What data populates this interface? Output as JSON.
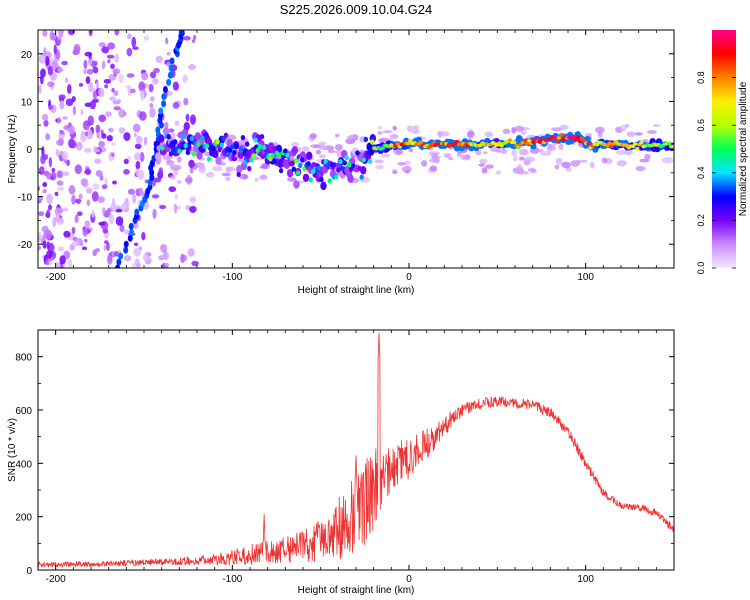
{
  "title": "S225.2026.009.10.04.G24",
  "chart_data": [
    {
      "type": "heatmap",
      "name": "spectrogram",
      "xlabel": "Height of straight line (km)",
      "ylabel": "Frequency (Hz)",
      "xlim": [
        -210,
        150
      ],
      "ylim": [
        -25,
        25
      ],
      "xticks": [
        -200,
        -100,
        0,
        100
      ],
      "xtick_labels": [
        "-200",
        "-100",
        "0",
        "100"
      ],
      "yticks": [
        20,
        10,
        0,
        -10,
        -20
      ],
      "ytick_labels": [
        "20",
        "10",
        "0",
        "-10",
        "-20"
      ],
      "colorbar": {
        "label": "Normalized spectral amplitude",
        "range": [
          0,
          1
        ],
        "ticks": [
          0.0,
          0.2,
          0.4,
          0.6,
          0.8
        ],
        "tick_labels": [
          "0.0",
          "0.2",
          "0.4",
          "0.6",
          "0.8"
        ],
        "colors": [
          "#f2e8ff",
          "#cc88ff",
          "#7a00ff",
          "#0000ff",
          "#00e5ff",
          "#00ff55",
          "#b8ff00",
          "#ffee00",
          "#ff8000",
          "#ff0000",
          "#ff0088"
        ]
      },
      "noise_region": {
        "x": [
          -210,
          -120
        ],
        "y": [
          -25,
          25
        ],
        "amplitude": 0.15
      },
      "vertical_streak": {
        "points": [
          [
            -165,
            -25
          ],
          [
            -155,
            -15
          ],
          [
            -147,
            -8
          ],
          [
            -143,
            0
          ],
          [
            -140,
            8
          ],
          [
            -133,
            20
          ],
          [
            -128,
            25
          ]
        ]
      },
      "ridge": [
        {
          "x": -142,
          "f": 0.2,
          "a": 0.3
        },
        {
          "x": -135,
          "f": 1.5,
          "a": 0.35
        },
        {
          "x": -128,
          "f": 1.0,
          "a": 0.4
        },
        {
          "x": -120,
          "f": 0.8,
          "a": 0.4
        },
        {
          "x": -112,
          "f": 0.3,
          "a": 0.42
        },
        {
          "x": -105,
          "f": 0.2,
          "a": 0.38
        },
        {
          "x": -98,
          "f": -1.0,
          "a": 0.3
        },
        {
          "x": -92,
          "f": -2.2,
          "a": 0.45
        },
        {
          "x": -86,
          "f": 2.0,
          "a": 0.4
        },
        {
          "x": -82,
          "f": 0.8,
          "a": 0.38
        },
        {
          "x": -78,
          "f": -0.8,
          "a": 0.45
        },
        {
          "x": -72,
          "f": -2.2,
          "a": 0.38
        },
        {
          "x": -66,
          "f": -2.5,
          "a": 0.3
        },
        {
          "x": -60,
          "f": -3.2,
          "a": 0.35
        },
        {
          "x": -54,
          "f": -4.0,
          "a": 0.38
        },
        {
          "x": -48,
          "f": -5.0,
          "a": 0.4
        },
        {
          "x": -42,
          "f": -4.2,
          "a": 0.38
        },
        {
          "x": -37,
          "f": -2.5,
          "a": 0.35
        },
        {
          "x": -32,
          "f": -4.0,
          "a": 0.3
        },
        {
          "x": -27,
          "f": -2.0,
          "a": 0.28
        },
        {
          "x": -22,
          "f": 0.0,
          "a": 0.45
        },
        {
          "x": -15,
          "f": 0.3,
          "a": 0.5
        },
        {
          "x": -8,
          "f": 0.7,
          "a": 0.7
        },
        {
          "x": 0,
          "f": 1.2,
          "a": 0.72
        },
        {
          "x": 10,
          "f": 0.9,
          "a": 0.78
        },
        {
          "x": 20,
          "f": 0.9,
          "a": 0.9
        },
        {
          "x": 30,
          "f": 0.9,
          "a": 0.85
        },
        {
          "x": 40,
          "f": 0.9,
          "a": 0.7
        },
        {
          "x": 50,
          "f": 1.0,
          "a": 0.6
        },
        {
          "x": 60,
          "f": 1.3,
          "a": 0.75
        },
        {
          "x": 70,
          "f": 1.4,
          "a": 0.85
        },
        {
          "x": 80,
          "f": 2.2,
          "a": 0.9
        },
        {
          "x": 88,
          "f": 2.5,
          "a": 0.95
        },
        {
          "x": 96,
          "f": 2.0,
          "a": 0.9
        },
        {
          "x": 104,
          "f": 0.8,
          "a": 0.75
        },
        {
          "x": 115,
          "f": 1.0,
          "a": 0.7
        },
        {
          "x": 125,
          "f": 0.9,
          "a": 0.65
        },
        {
          "x": 138,
          "f": 0.7,
          "a": 0.6
        },
        {
          "x": 150,
          "f": 0.7,
          "a": 0.55
        }
      ]
    },
    {
      "type": "line",
      "name": "snr",
      "xlabel": "Height of straight line (km)",
      "ylabel": "SNR (10 * v/v)",
      "xlim": [
        -210,
        150
      ],
      "ylim": [
        0,
        900
      ],
      "xticks": [
        -200,
        -100,
        0,
        100
      ],
      "xtick_labels": [
        "-200",
        "-100",
        "0",
        "100"
      ],
      "yticks": [
        0,
        200,
        400,
        600,
        800
      ],
      "ytick_labels": [
        "0",
        "200",
        "400",
        "600",
        "800"
      ],
      "line_color": "#ee3333",
      "envelope": {
        "x": [
          -210,
          -180,
          -150,
          -120,
          -100,
          -85,
          -70,
          -60,
          -50,
          -40,
          -30,
          -25,
          -20,
          -18,
          -15,
          -10,
          0,
          10,
          20,
          30,
          40,
          50,
          60,
          70,
          80,
          90,
          100,
          110,
          120,
          130,
          140,
          150
        ],
        "mean": [
          20,
          22,
          28,
          35,
          45,
          65,
          75,
          90,
          110,
          150,
          220,
          250,
          300,
          330,
          340,
          380,
          420,
          470,
          540,
          600,
          625,
          630,
          625,
          620,
          590,
          520,
          400,
          290,
          240,
          235,
          215,
          150
        ],
        "spread": [
          10,
          10,
          12,
          15,
          30,
          45,
          50,
          60,
          80,
          120,
          150,
          160,
          150,
          130,
          100,
          90,
          80,
          60,
          40,
          25,
          22,
          20,
          20,
          20,
          20,
          20,
          20,
          15,
          12,
          12,
          15,
          15
        ]
      },
      "spikes": [
        {
          "x": -17,
          "y": 890
        },
        {
          "x": -30,
          "y": 430
        },
        {
          "x": -82,
          "y": 210
        }
      ]
    }
  ]
}
